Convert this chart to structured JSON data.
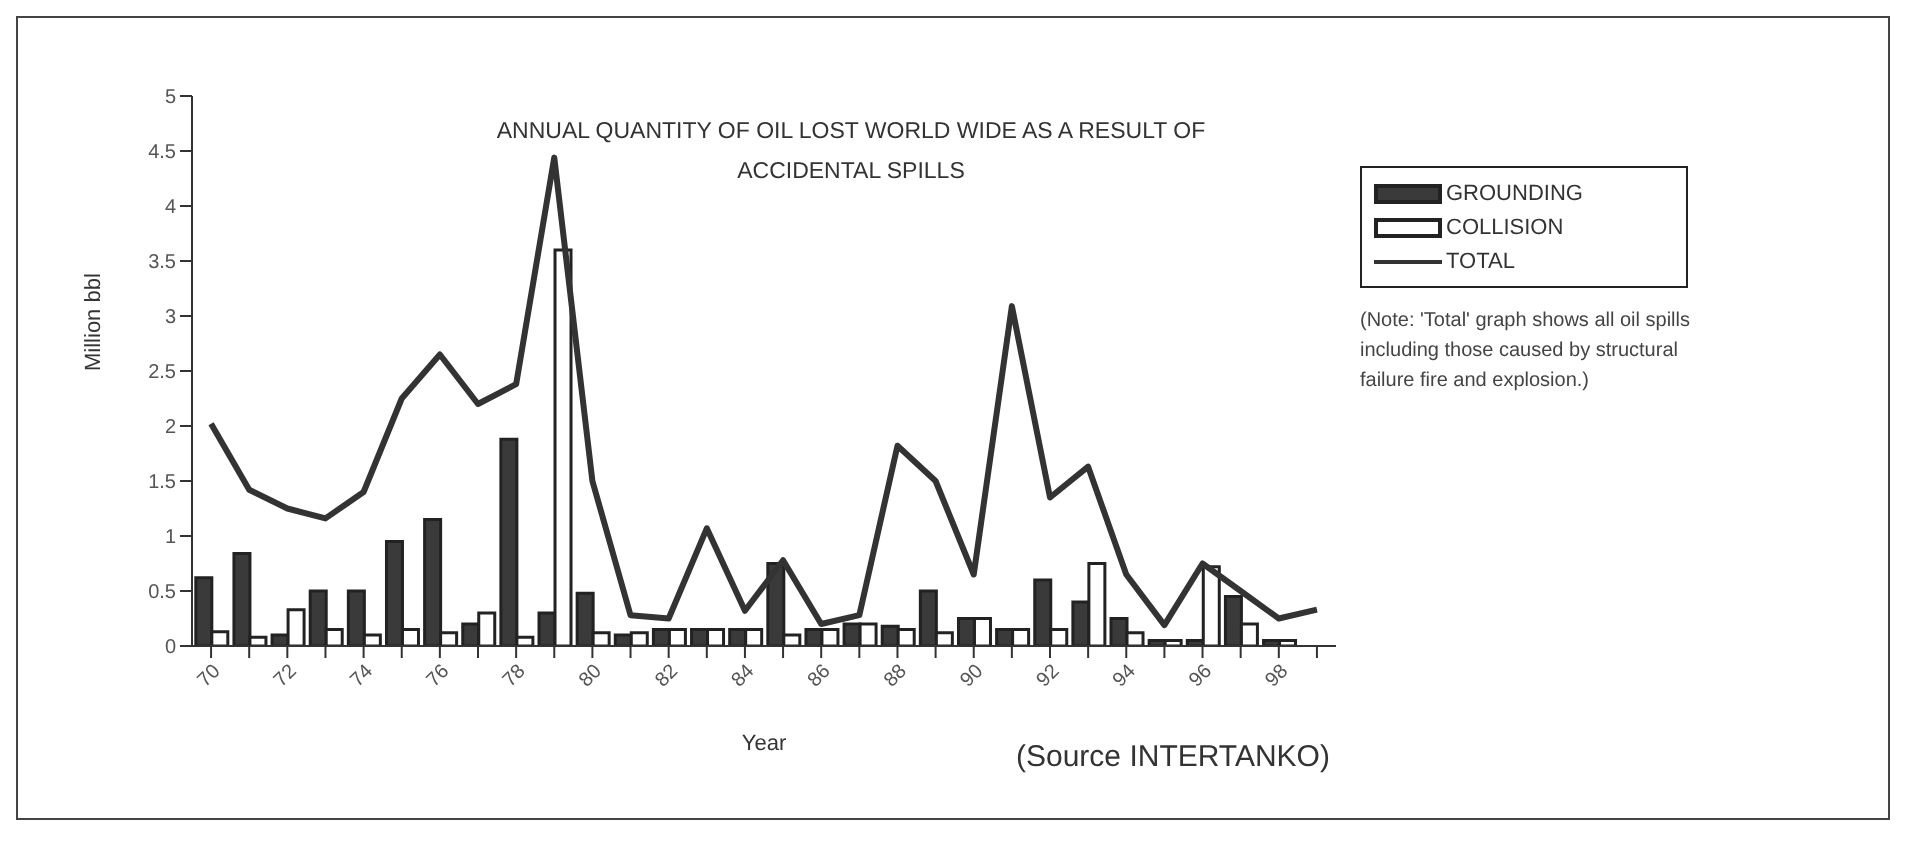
{
  "chart_data": {
    "type": "bar",
    "title": "ANNUAL QUANTITY OF OIL LOST WORLD WIDE AS A RESULT OF ACCIDENTAL SPILLS",
    "xlabel": "Year",
    "ylabel": "Million bbl",
    "categories": [
      "70",
      null,
      "72",
      null,
      "74",
      null,
      "76",
      null,
      "78",
      null,
      "80",
      null,
      "82",
      null,
      "84",
      null,
      "86",
      null,
      "88",
      null,
      "90",
      null,
      "92",
      null,
      "94",
      null,
      "96",
      null,
      "98",
      null
    ],
    "series": [
      {
        "name": "GROUNDING",
        "color": "#3a3a3a",
        "values": [
          0.62,
          0.84,
          0.1,
          0.5,
          0.5,
          0.95,
          1.15,
          0.2,
          1.88,
          0.3,
          0.48,
          0.1,
          0.15,
          0.15,
          0.15,
          0.75,
          0.15,
          0.2,
          0.18,
          0.5,
          0.25,
          0.15,
          0.6,
          0.4,
          0.25,
          0.05,
          0.05,
          0.45,
          0.05,
          null
        ]
      },
      {
        "name": "COLLISION",
        "color": "#ffffff",
        "values": [
          0.13,
          0.08,
          0.33,
          0.15,
          0.1,
          0.15,
          0.12,
          0.3,
          0.08,
          3.6,
          0.12,
          0.12,
          0.15,
          0.15,
          0.15,
          0.1,
          0.15,
          0.2,
          0.15,
          0.12,
          0.25,
          0.15,
          0.15,
          0.75,
          0.12,
          0.05,
          0.72,
          0.2,
          0.05,
          null
        ]
      },
      {
        "name": "TOTAL",
        "type": "line",
        "color": "#333333",
        "values": [
          2.02,
          1.42,
          1.25,
          1.16,
          1.4,
          2.25,
          2.65,
          2.2,
          2.38,
          4.44,
          1.5,
          0.28,
          0.25,
          1.07,
          0.32,
          0.78,
          0.2,
          0.28,
          1.82,
          1.5,
          0.65,
          3.09,
          1.35,
          1.63,
          0.65,
          0.19,
          0.75,
          0.5,
          0.25,
          0.33
        ]
      }
    ],
    "ylim": [
      0,
      5
    ],
    "yticks": [
      0,
      0.5,
      1,
      1.5,
      2,
      2.5,
      3,
      3.5,
      4,
      4.5,
      5
    ],
    "grid": false,
    "legend": "right",
    "marker": "none",
    "line_style": "solid",
    "annotations": [
      "(Note: 'Total' graph shows all oil spills including those caused by structural failure fire and explosion.)",
      "(Source INTERTANKO)"
    ]
  }
}
